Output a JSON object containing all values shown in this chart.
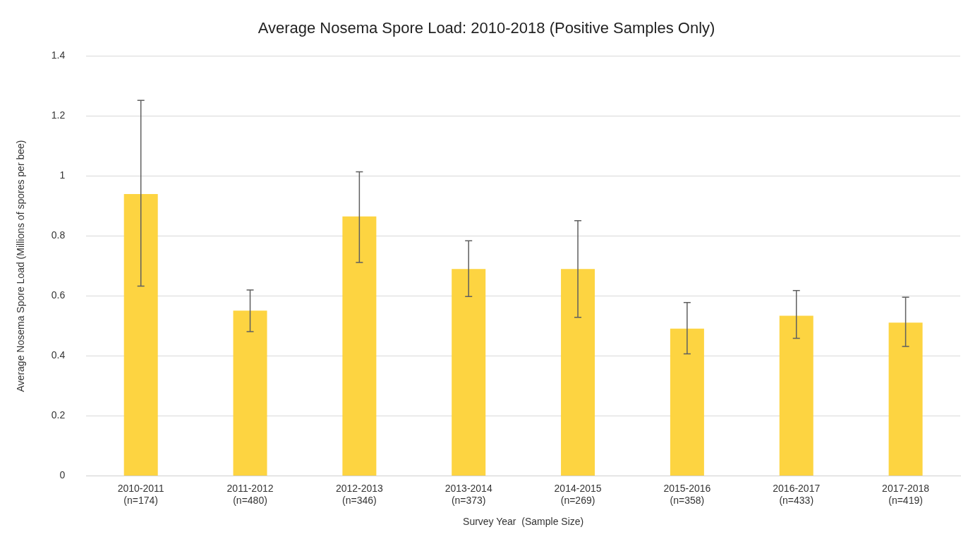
{
  "chart_data": {
    "type": "bar",
    "title": "Average Nosema Spore Load: 2010-2018 (Positive Samples Only)",
    "xlabel": "Survey Year  (Sample Size)",
    "ylabel": "Average Nosema Spore Load (Millions of spores per bee)",
    "categories": [
      "2010-2011\n(n=174)",
      "2011-2012\n(n=480)",
      "2012-2013\n(n=346)",
      "2013-2014\n(n=373)",
      "2014-2015\n(n=269)",
      "2015-2016\n(n=358)",
      "2016-2017\n(n=433)",
      "2017-2018\n(n=419)"
    ],
    "values": [
      0.94,
      0.551,
      0.865,
      0.69,
      0.69,
      0.491,
      0.534,
      0.511
    ],
    "errors": [
      [
        0.633,
        1.252
      ],
      [
        0.481,
        0.62
      ],
      [
        0.712,
        1.014
      ],
      [
        0.598,
        0.784
      ],
      [
        0.529,
        0.851
      ],
      [
        0.407,
        0.578
      ],
      [
        0.459,
        0.618
      ],
      [
        0.432,
        0.596
      ]
    ],
    "color": "#fdd441",
    "ylim": [
      0,
      1.4
    ],
    "yticks": [
      0,
      0.2,
      0.4,
      0.6,
      0.8,
      1,
      1.2,
      1.4
    ],
    "grid": "y",
    "legend": false
  }
}
